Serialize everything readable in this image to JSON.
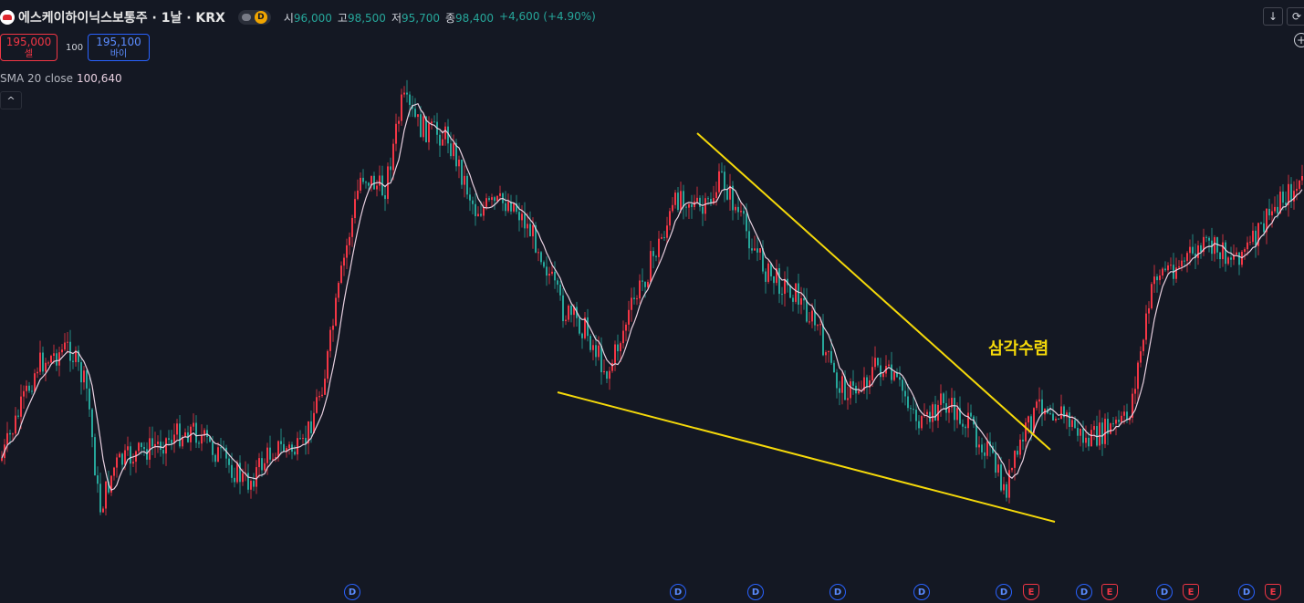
{
  "header": {
    "logo_icon": "sk-hynix-logo-icon",
    "title": "에스케이하이닉스보통주 · 1날 · KRX",
    "interval_badge": "D",
    "ohlc": [
      {
        "label": "시",
        "value": "96,000"
      },
      {
        "label": "고",
        "value": "98,500"
      },
      {
        "label": "저",
        "value": "95,700"
      },
      {
        "label": "종",
        "value": "98,400"
      }
    ],
    "change": "+4,600 (+4.90%)"
  },
  "trade": {
    "sell_price": "195,000",
    "sell_label": "셀",
    "spread": "100",
    "buy_price": "195,100",
    "buy_label": "바이"
  },
  "indicator": {
    "name": "SMA 20 close",
    "value": "100,640"
  },
  "controls": {
    "collapse_glyph": "^",
    "download_glyph": "↓",
    "refresh_glyph": "⟳",
    "plus_glyph": "+"
  },
  "annotation": "삼각수렴",
  "events": [
    {
      "type": "D",
      "label": "D"
    },
    {
      "type": "D",
      "label": "D"
    },
    {
      "type": "D",
      "label": "D"
    },
    {
      "type": "D",
      "label": "D"
    },
    {
      "type": "D",
      "label": "D"
    },
    {
      "type": "D",
      "label": "D"
    },
    {
      "type": "E",
      "label": "E"
    },
    {
      "type": "D",
      "label": "D"
    },
    {
      "type": "E",
      "label": "E"
    },
    {
      "type": "D",
      "label": "D"
    },
    {
      "type": "E",
      "label": "E"
    },
    {
      "type": "D",
      "label": "D"
    },
    {
      "type": "E",
      "label": "E"
    }
  ],
  "colors": {
    "background": "#141823",
    "up": "#f23645",
    "down": "#26a69a",
    "sma": "#e8d0e0",
    "trendline": "#f5d90a"
  }
}
